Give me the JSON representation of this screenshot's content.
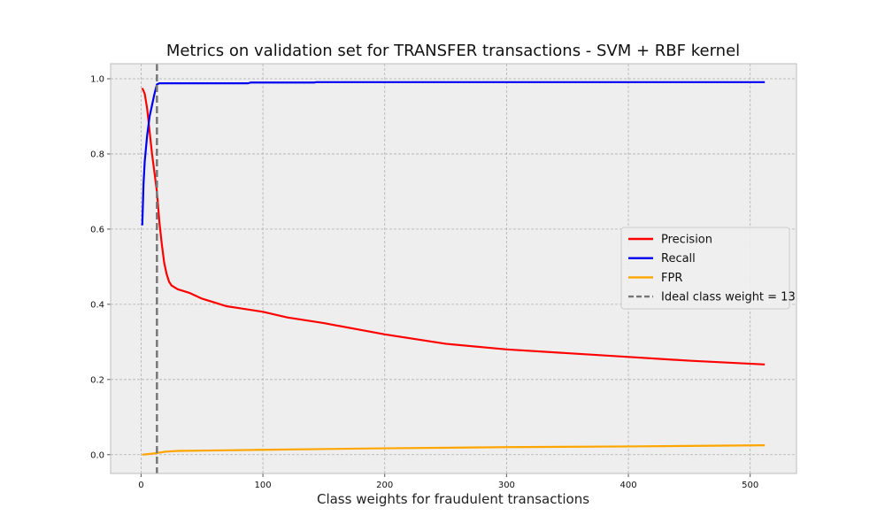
{
  "chart_data": {
    "type": "line",
    "title": "Metrics on validation set for TRANSFER transactions - SVM + RBF kernel",
    "xlabel": "Class weights for fraudulent transactions",
    "ylabel": "",
    "xlim": [
      -25,
      538
    ],
    "ylim": [
      -0.05,
      1.04
    ],
    "xticks": [
      0,
      100,
      200,
      300,
      400,
      500
    ],
    "yticks": [
      0.0,
      0.2,
      0.4,
      0.6,
      0.8,
      1.0
    ],
    "xtick_labels": [
      "0",
      "100",
      "200",
      "300",
      "400",
      "500"
    ],
    "ytick_labels": [
      "0.0",
      "0.2",
      "0.4",
      "0.6",
      "0.8",
      "1.0"
    ],
    "grid": true,
    "legend_position": "center-right",
    "background": "#eeeeee",
    "series": [
      {
        "name": "Precision",
        "color": "#ff0000",
        "x": [
          1,
          3,
          5,
          7,
          9,
          11,
          13,
          15,
          17,
          19,
          21,
          23,
          25,
          30,
          40,
          50,
          60,
          70,
          80,
          100,
          120,
          150,
          200,
          250,
          300,
          350,
          400,
          450,
          512
        ],
        "y": [
          0.975,
          0.96,
          0.92,
          0.86,
          0.8,
          0.75,
          0.7,
          0.62,
          0.56,
          0.51,
          0.48,
          0.46,
          0.45,
          0.44,
          0.43,
          0.415,
          0.405,
          0.395,
          0.39,
          0.38,
          0.365,
          0.35,
          0.32,
          0.295,
          0.28,
          0.27,
          0.26,
          0.25,
          0.24
        ]
      },
      {
        "name": "Recall",
        "color": "#0000ee",
        "x": [
          1,
          2,
          3,
          5,
          7,
          9,
          11,
          13,
          15,
          20,
          50,
          88,
          90,
          142,
          144,
          512
        ],
        "y": [
          0.61,
          0.72,
          0.78,
          0.85,
          0.9,
          0.93,
          0.96,
          0.985,
          0.988,
          0.988,
          0.988,
          0.988,
          0.99,
          0.99,
          0.991,
          0.991
        ]
      },
      {
        "name": "FPR",
        "color": "#ffa500",
        "x": [
          1,
          10,
          20,
          30,
          100,
          200,
          300,
          400,
          512
        ],
        "y": [
          0.0,
          0.003,
          0.008,
          0.01,
          0.013,
          0.017,
          0.02,
          0.022,
          0.025
        ]
      }
    ],
    "vline": {
      "name": "Ideal class weight = 13",
      "x": 13,
      "color": "#777777"
    }
  }
}
